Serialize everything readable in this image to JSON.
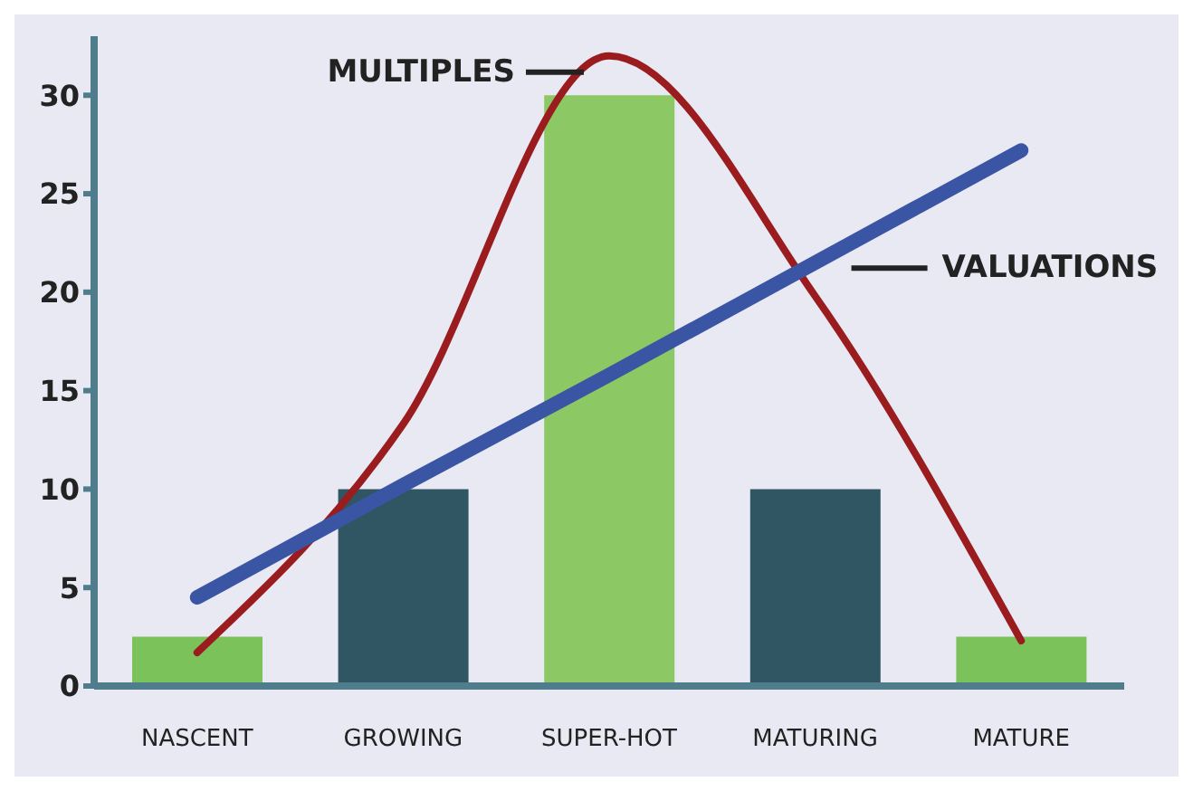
{
  "chart_data": {
    "type": "bar",
    "categories": [
      "NASCENT",
      "GROWING",
      "SUPER-HOT",
      "MATURING",
      "MATURE"
    ],
    "values": [
      2.5,
      10,
      30,
      10,
      2.5
    ],
    "colors": [
      "#7cc25a",
      "#2f5662",
      "#8cc965",
      "#2f5662",
      "#7cc25a"
    ],
    "series": [
      {
        "name": "MULTIPLES",
        "type": "line",
        "color": "#9b1c1f",
        "values": [
          1.7,
          13.3,
          32,
          19.8,
          2.3
        ]
      },
      {
        "name": "VALUATIONS",
        "type": "line",
        "color": "#3a55a4",
        "values": [
          4.5,
          10.2,
          15.8,
          21.5,
          27.2
        ]
      }
    ],
    "ylim": [
      0,
      33
    ],
    "yticks": [
      0,
      5,
      10,
      15,
      20,
      25,
      30
    ],
    "grid": false,
    "legend": false
  }
}
